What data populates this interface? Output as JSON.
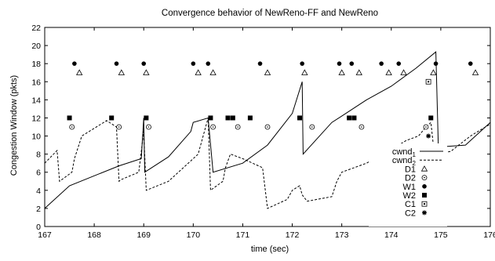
{
  "chart_data": {
    "type": "line",
    "title": "Convergence behavior of NewReno-FF and NewReno",
    "xlabel": "time (sec)",
    "ylabel": "Congestion Window (pkts)",
    "xlim": [
      167,
      176
    ],
    "ylim": [
      0,
      22
    ],
    "xticks": [
      167,
      168,
      169,
      170,
      171,
      172,
      173,
      174,
      175,
      176
    ],
    "yticks": [
      0,
      2,
      4,
      6,
      8,
      10,
      12,
      14,
      16,
      18,
      20,
      22
    ],
    "grid": false,
    "legend_position": "right",
    "series": [
      {
        "name": "cwnd",
        "name_subscript": "1",
        "style": "solid",
        "x": [
          167.0,
          167.5,
          168.0,
          168.5,
          168.95,
          169.0,
          169.02,
          169.5,
          169.95,
          170.0,
          170.3,
          170.4,
          171.0,
          171.5,
          172.0,
          172.2,
          172.22,
          172.8,
          173.0,
          173.5,
          174.0,
          174.5,
          174.9,
          174.95,
          175.0,
          175.5,
          176.0
        ],
        "y": [
          2.0,
          4.5,
          5.6,
          6.7,
          7.5,
          12.0,
          6.0,
          7.7,
          10.5,
          11.5,
          12.0,
          6.0,
          7.0,
          9.0,
          12.5,
          16.0,
          8.0,
          11.5,
          12.2,
          14.0,
          15.5,
          17.5,
          19.3,
          9.0,
          8.8,
          9.0,
          11.5
        ]
      },
      {
        "name": "cwnd",
        "name_subscript": "2",
        "style": "dashed",
        "x": [
          167.0,
          167.25,
          167.3,
          167.55,
          167.6,
          167.75,
          168.25,
          168.45,
          168.5,
          168.55,
          168.9,
          169.0,
          169.05,
          169.5,
          170.1,
          170.3,
          170.35,
          170.6,
          170.65,
          170.75,
          171.0,
          171.2,
          171.4,
          171.5,
          171.9,
          172.0,
          172.15,
          172.2,
          172.3,
          172.5,
          172.8,
          172.9,
          173.0,
          173.5,
          174.0,
          174.3,
          174.55,
          174.7,
          174.8,
          174.85,
          174.9,
          175.2,
          175.6,
          175.9,
          176.0
        ],
        "y": [
          7.0,
          8.4,
          5.0,
          6.0,
          7.5,
          10.0,
          11.7,
          11.0,
          5.0,
          5.2,
          6.0,
          10.5,
          4.0,
          5.0,
          8.0,
          12.0,
          4.0,
          5.0,
          6.5,
          8.0,
          7.5,
          7.0,
          6.5,
          2.0,
          3.0,
          4.0,
          4.5,
          3.5,
          2.8,
          3.0,
          3.3,
          5.0,
          6.0,
          7.0,
          8.5,
          9.5,
          10.0,
          11.0,
          11.5,
          9.0,
          8.0,
          8.3,
          10.0,
          11.0,
          11.3
        ]
      }
    ],
    "events": [
      {
        "name": "D1",
        "marker": "triangle",
        "x": [
          167.7,
          168.55,
          169.05,
          170.1,
          170.4,
          171.5,
          172.25,
          173.0,
          173.35,
          173.95,
          174.25,
          174.85,
          175.7
        ],
        "y": [
          17,
          17,
          17,
          17,
          17,
          17,
          17,
          17,
          17,
          17,
          17,
          17,
          17
        ]
      },
      {
        "name": "D2",
        "marker": "open-circle",
        "x": [
          167.55,
          168.5,
          169.1,
          170.4,
          170.9,
          171.5,
          172.4,
          173.4,
          174.7
        ],
        "y": [
          11,
          11,
          11,
          11,
          11,
          11,
          11,
          11,
          11
        ]
      },
      {
        "name": "W1",
        "marker": "filled-circle",
        "x": [
          167.6,
          168.45,
          169.0,
          170.0,
          170.3,
          171.35,
          172.2,
          172.95,
          173.2,
          173.8,
          174.15,
          174.9,
          175.6
        ],
        "y": [
          18,
          18,
          18,
          18,
          18,
          18,
          18,
          18,
          18,
          18,
          18,
          18,
          18
        ]
      },
      {
        "name": "W2",
        "marker": "filled-square",
        "x": [
          167.5,
          168.35,
          169.05,
          170.35,
          170.7,
          170.8,
          171.15,
          172.15,
          173.15,
          173.25,
          174.8
        ],
        "y": [
          12,
          12,
          12,
          12,
          12,
          12,
          12,
          12,
          12,
          12,
          12
        ]
      },
      {
        "name": "C1",
        "marker": "open-square",
        "x": [
          174.75
        ],
        "y": [
          16
        ]
      },
      {
        "name": "C2",
        "marker": "star",
        "x": [
          174.75
        ],
        "y": [
          10
        ]
      }
    ]
  }
}
